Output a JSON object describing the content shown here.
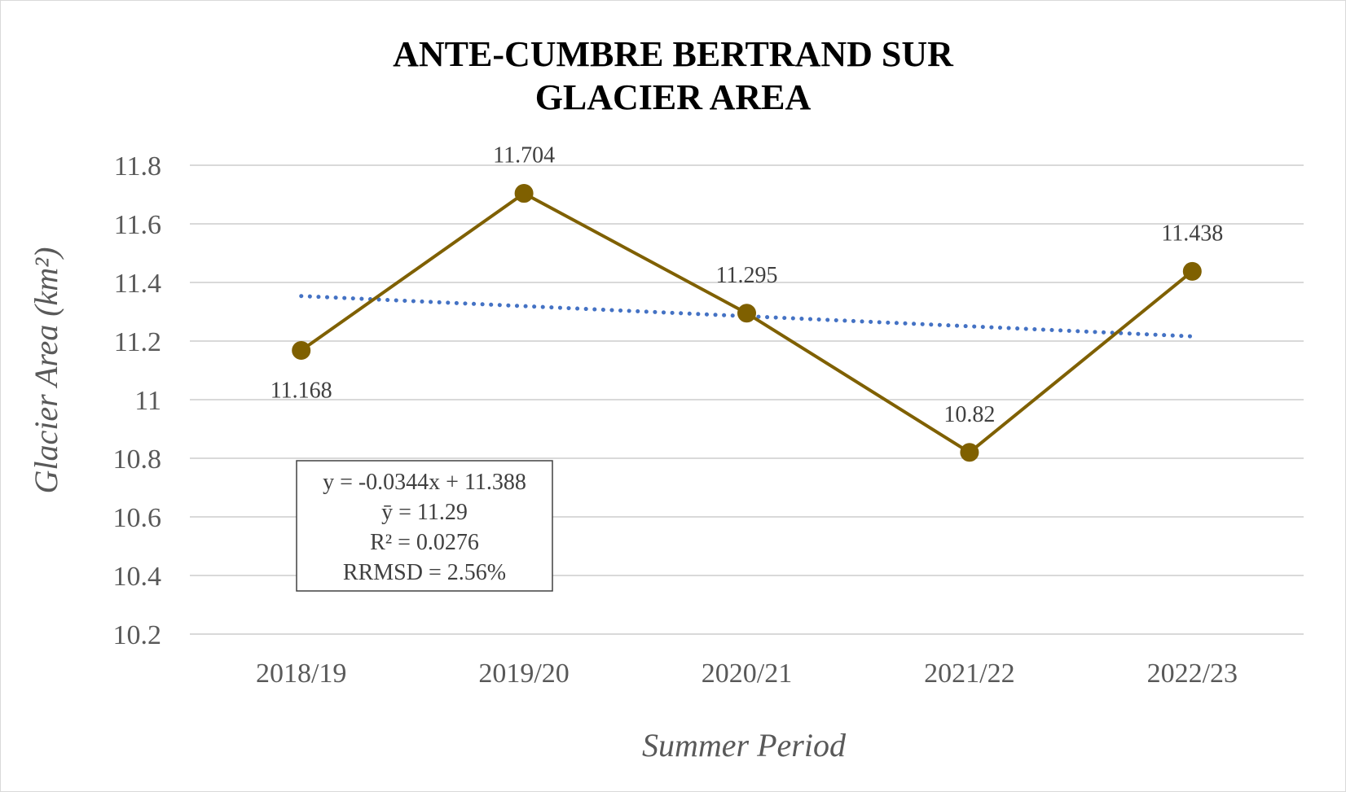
{
  "chart_data": {
    "type": "line",
    "title_line1": "ANTE-CUMBRE BERTRAND SUR",
    "title_line2": "GLACIER AREA",
    "xlabel": "Summer Period",
    "ylabel": "Glacier Area (km²)",
    "categories": [
      "2018/19",
      "2019/20",
      "2020/21",
      "2021/22",
      "2022/23"
    ],
    "series": [
      {
        "values": [
          11.168,
          11.704,
          11.295,
          10.82,
          11.438
        ],
        "data_labels": [
          "11.168",
          "11.704",
          "11.295",
          "10.82",
          "11.438"
        ],
        "color": "#7f6000"
      }
    ],
    "trendline": {
      "type": "linear",
      "slope": -0.0344,
      "intercept": 11.388,
      "color": "#4472c4",
      "style": "dotted"
    },
    "ylim": [
      10.2,
      11.8
    ],
    "yticks": [
      10.2,
      10.4,
      10.6,
      10.8,
      11,
      11.2,
      11.4,
      11.6,
      11.8
    ],
    "ytick_labels": [
      "10.2",
      "10.4",
      "10.6",
      "10.8",
      "11",
      "11.2",
      "11.4",
      "11.6",
      "11.8"
    ],
    "grid": true,
    "legend": "none",
    "gridline_color": "#d9d9d9",
    "stats_box": {
      "equation": "y = -0.0344x + 11.388",
      "mean": "ȳ = 11.29",
      "r2": "R² = 0.0276",
      "rrmsd": "RRMSD = 2.56%"
    }
  }
}
